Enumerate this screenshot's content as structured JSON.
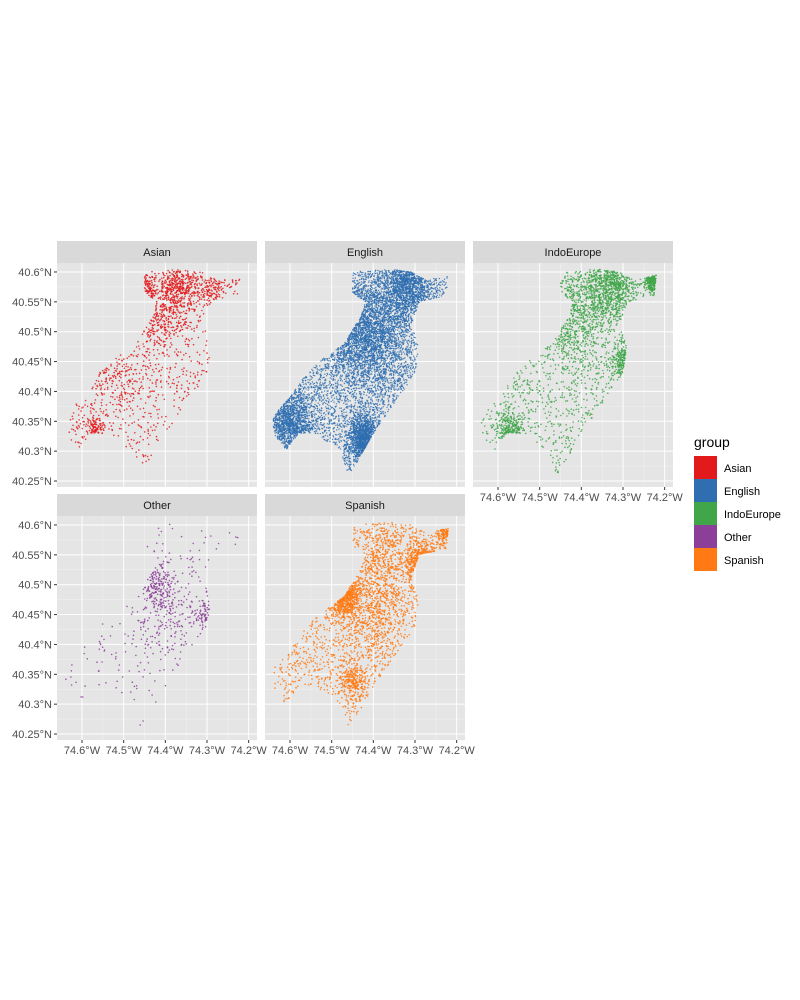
{
  "chart_data": {
    "type": "scatter",
    "layout": "facet-wrap",
    "panel_background": "#e5e5e5",
    "strip_background": "#d9d9d9",
    "grid": true,
    "legend": {
      "title": "group",
      "placement": "right",
      "entries": [
        {
          "label": "Asian",
          "color": "#e31a1c"
        },
        {
          "label": "English",
          "color": "#2f6eb0"
        },
        {
          "label": "IndoEurope",
          "color": "#41a64a"
        },
        {
          "label": "Other",
          "color": "#8b3f98"
        },
        {
          "label": "Spanish",
          "color": "#ff7a14"
        }
      ]
    },
    "xlim": [
      -74.66,
      -74.18
    ],
    "ylim": [
      40.24,
      40.615
    ],
    "x_ticks": [
      -74.6,
      -74.5,
      -74.4,
      -74.3,
      -74.2
    ],
    "x_tick_labels": [
      "74.6°W",
      "74.5°W",
      "74.4°W",
      "74.3°W",
      "74.2°W"
    ],
    "y_ticks": [
      40.25,
      40.3,
      40.35,
      40.4,
      40.45,
      40.5,
      40.55,
      40.6
    ],
    "y_tick_labels": [
      "40.25°N",
      "40.3°N",
      "40.35°N",
      "40.4°N",
      "40.45°N",
      "40.5°N",
      "40.55°N",
      "40.6°N"
    ],
    "region_outline": [
      [
        -74.64,
        40.36
      ],
      [
        -74.6,
        40.39
      ],
      [
        -74.56,
        40.43
      ],
      [
        -74.52,
        40.455
      ],
      [
        -74.47,
        40.48
      ],
      [
        -74.43,
        40.525
      ],
      [
        -74.42,
        40.55
      ],
      [
        -74.45,
        40.565
      ],
      [
        -74.45,
        40.6
      ],
      [
        -74.36,
        40.605
      ],
      [
        -74.31,
        40.6
      ],
      [
        -74.27,
        40.585
      ],
      [
        -74.25,
        40.59
      ],
      [
        -74.22,
        40.595
      ],
      [
        -74.225,
        40.56
      ],
      [
        -74.29,
        40.55
      ],
      [
        -74.31,
        40.51
      ],
      [
        -74.29,
        40.48
      ],
      [
        -74.3,
        40.43
      ],
      [
        -74.33,
        40.4
      ],
      [
        -74.37,
        40.36
      ],
      [
        -74.4,
        40.33
      ],
      [
        -74.44,
        40.28
      ],
      [
        -74.46,
        40.26
      ],
      [
        -74.48,
        40.3
      ],
      [
        -74.54,
        40.33
      ],
      [
        -74.58,
        40.33
      ],
      [
        -74.61,
        40.3
      ],
      [
        -74.64,
        40.33
      ]
    ],
    "facets": [
      {
        "name": "Asian",
        "color": "#e31a1c",
        "points": 1700,
        "clusters": [
          {
            "x": -74.37,
            "y": 40.575,
            "r": 0.025,
            "w": 4
          },
          {
            "x": -74.45,
            "y": 40.57,
            "r": 0.015,
            "w": 2
          },
          {
            "x": -74.41,
            "y": 40.52,
            "r": 0.03,
            "w": 3
          },
          {
            "x": -74.29,
            "y": 40.57,
            "r": 0.025,
            "w": 2
          },
          {
            "x": -74.57,
            "y": 40.335,
            "r": 0.012,
            "w": 1.5
          },
          {
            "x": -74.52,
            "y": 40.43,
            "r": 0.04,
            "w": 1.5
          }
        ]
      },
      {
        "name": "English",
        "color": "#2f6eb0",
        "points": 9000,
        "clusters": [
          {
            "x": -74.42,
            "y": 40.5,
            "r": 0.05,
            "w": 2
          },
          {
            "x": -74.42,
            "y": 40.32,
            "r": 0.02,
            "w": 1
          },
          {
            "x": -74.32,
            "y": 40.58,
            "r": 0.03,
            "w": 1
          },
          {
            "x": -74.6,
            "y": 40.35,
            "r": 0.03,
            "w": 1
          }
        ]
      },
      {
        "name": "IndoEurope",
        "color": "#41a64a",
        "points": 2800,
        "clusters": [
          {
            "x": -74.33,
            "y": 40.58,
            "r": 0.03,
            "w": 3
          },
          {
            "x": -74.42,
            "y": 40.53,
            "r": 0.04,
            "w": 2
          },
          {
            "x": -74.57,
            "y": 40.335,
            "r": 0.015,
            "w": 1
          },
          {
            "x": -74.3,
            "y": 40.45,
            "r": 0.015,
            "w": 1
          },
          {
            "x": -74.23,
            "y": 40.585,
            "r": 0.01,
            "w": 1
          }
        ]
      },
      {
        "name": "Other",
        "color": "#8b3f98",
        "points": 600,
        "clusters": [
          {
            "x": -74.42,
            "y": 40.5,
            "r": 0.02,
            "w": 2
          },
          {
            "x": -74.4,
            "y": 40.45,
            "r": 0.04,
            "w": 2
          },
          {
            "x": -74.3,
            "y": 40.45,
            "r": 0.015,
            "w": 1
          }
        ]
      },
      {
        "name": "Spanish",
        "color": "#ff7a14",
        "points": 3200,
        "clusters": [
          {
            "x": -74.28,
            "y": 40.53,
            "r": 0.018,
            "w": 5
          },
          {
            "x": -74.47,
            "y": 40.485,
            "r": 0.018,
            "w": 4
          },
          {
            "x": -74.22,
            "y": 40.59,
            "r": 0.015,
            "w": 2
          },
          {
            "x": -74.38,
            "y": 40.54,
            "r": 0.04,
            "w": 2
          },
          {
            "x": -74.45,
            "y": 40.34,
            "r": 0.015,
            "w": 1
          },
          {
            "x": -74.4,
            "y": 40.45,
            "r": 0.04,
            "w": 1.5
          }
        ]
      }
    ]
  }
}
